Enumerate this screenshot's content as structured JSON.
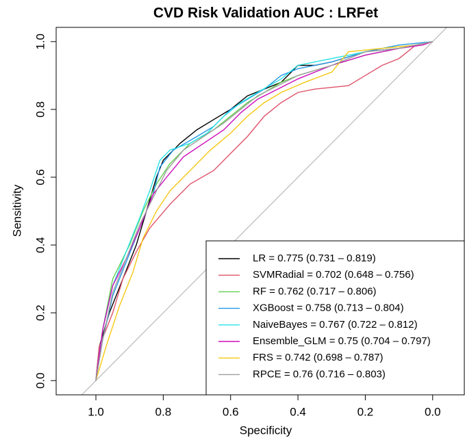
{
  "chart_data": {
    "type": "line",
    "title": "CVD Risk Validation AUC : LRFet",
    "x_label": "Specificity",
    "y_label": "Sensitivity",
    "xlim": [
      1.118,
      -0.094
    ],
    "ylim": [
      -0.042,
      1.042
    ],
    "xticks": [
      {
        "value": 1,
        "label": "1.0"
      },
      {
        "value": 0.8,
        "label": "0.8"
      },
      {
        "value": 0.6,
        "label": "0.6"
      },
      {
        "value": 0.4,
        "label": "0.4"
      },
      {
        "value": 0.2,
        "label": "0.2"
      },
      {
        "value": 0,
        "label": "0.0"
      }
    ],
    "yticks": [
      {
        "value": 0,
        "label": "0.0"
      },
      {
        "value": 0.2,
        "label": "0.2"
      },
      {
        "value": 0.4,
        "label": "0.4"
      },
      {
        "value": 0.6,
        "label": "0.6"
      },
      {
        "value": 0.8,
        "label": "0.8"
      },
      {
        "value": 1,
        "label": "1.0"
      }
    ],
    "series": [
      {
        "name": "LR = 0.775 (0.731 – 0.819)",
        "color": "#000000",
        "x": [
          1,
          0.99,
          0.96,
          0.92,
          0.88,
          0.85,
          0.82,
          0.8,
          0.75,
          0.7,
          0.65,
          0.6,
          0.55,
          0.5,
          0.45,
          0.4,
          0.35,
          0.3,
          0.2,
          0.1,
          0.05,
          0
        ],
        "values": [
          0,
          0.1,
          0.2,
          0.3,
          0.4,
          0.5,
          0.6,
          0.65,
          0.7,
          0.74,
          0.77,
          0.8,
          0.84,
          0.86,
          0.88,
          0.93,
          0.93,
          0.94,
          0.97,
          0.98,
          0.99,
          1
        ]
      },
      {
        "name": "SVMRadial = 0.702 (0.648 – 0.756)",
        "color": "#DF536B",
        "x": [
          1,
          0.99,
          0.95,
          0.92,
          0.88,
          0.84,
          0.78,
          0.72,
          0.65,
          0.6,
          0.55,
          0.5,
          0.45,
          0.4,
          0.35,
          0.25,
          0.2,
          0.15,
          0.1,
          0.05,
          0
        ],
        "values": [
          0,
          0.1,
          0.2,
          0.3,
          0.38,
          0.45,
          0.52,
          0.58,
          0.62,
          0.67,
          0.72,
          0.78,
          0.82,
          0.85,
          0.86,
          0.87,
          0.9,
          0.93,
          0.95,
          0.99,
          1
        ]
      },
      {
        "name": "RF = 0.762 (0.717 – 0.806)",
        "color": "#61D04F",
        "x": [
          1,
          0.98,
          0.95,
          0.9,
          0.86,
          0.82,
          0.78,
          0.72,
          0.65,
          0.6,
          0.55,
          0.5,
          0.45,
          0.4,
          0.3,
          0.2,
          0.1,
          0
        ],
        "values": [
          0,
          0.15,
          0.3,
          0.4,
          0.5,
          0.58,
          0.64,
          0.7,
          0.74,
          0.78,
          0.82,
          0.85,
          0.88,
          0.9,
          0.93,
          0.96,
          0.98,
          1
        ]
      },
      {
        "name": "XGBoost = 0.758 (0.713 – 0.804)",
        "color": "#2297E6",
        "x": [
          1,
          0.98,
          0.95,
          0.91,
          0.87,
          0.83,
          0.81,
          0.77,
          0.7,
          0.65,
          0.6,
          0.55,
          0.5,
          0.45,
          0.4,
          0.3,
          0.2,
          0.1,
          0
        ],
        "values": [
          0,
          0.12,
          0.25,
          0.35,
          0.45,
          0.55,
          0.63,
          0.68,
          0.72,
          0.75,
          0.8,
          0.83,
          0.86,
          0.9,
          0.92,
          0.94,
          0.97,
          0.99,
          1
        ]
      },
      {
        "name": "NaiveBayes = 0.767 (0.722 – 0.812)",
        "color": "#28E2E5",
        "x": [
          1,
          0.98,
          0.95,
          0.91,
          0.87,
          0.84,
          0.81,
          0.78,
          0.72,
          0.67,
          0.62,
          0.57,
          0.52,
          0.45,
          0.4,
          0.3,
          0.2,
          0.1,
          0
        ],
        "values": [
          0,
          0.15,
          0.28,
          0.38,
          0.48,
          0.56,
          0.65,
          0.68,
          0.7,
          0.73,
          0.78,
          0.82,
          0.85,
          0.89,
          0.93,
          0.95,
          0.97,
          0.98,
          1
        ]
      },
      {
        "name": "Ensemble_GLM = 0.75 (0.704 – 0.797)",
        "color": "#CD0BBC",
        "x": [
          1,
          0.98,
          0.95,
          0.91,
          0.87,
          0.83,
          0.79,
          0.74,
          0.68,
          0.62,
          0.57,
          0.52,
          0.46,
          0.4,
          0.3,
          0.2,
          0.1,
          0.03,
          0
        ],
        "values": [
          0,
          0.15,
          0.28,
          0.36,
          0.45,
          0.55,
          0.6,
          0.66,
          0.7,
          0.74,
          0.79,
          0.83,
          0.86,
          0.89,
          0.93,
          0.96,
          0.98,
          0.99,
          1
        ]
      },
      {
        "name": "FRS = 0.742 (0.698 – 0.787)",
        "color": "#F5C710",
        "x": [
          1,
          0.97,
          0.93,
          0.89,
          0.86,
          0.82,
          0.78,
          0.72,
          0.66,
          0.6,
          0.55,
          0.5,
          0.45,
          0.38,
          0.3,
          0.25,
          0.15,
          0.05,
          0
        ],
        "values": [
          0,
          0.1,
          0.22,
          0.32,
          0.42,
          0.5,
          0.56,
          0.62,
          0.68,
          0.73,
          0.78,
          0.82,
          0.85,
          0.88,
          0.91,
          0.97,
          0.98,
          0.99,
          1
        ]
      },
      {
        "name": "RPCE = 0.76 (0.716 – 0.803)",
        "color": "#9E9E9E",
        "x": [
          1,
          0.98,
          0.95,
          0.91,
          0.87,
          0.83,
          0.79,
          0.74,
          0.68,
          0.62,
          0.57,
          0.52,
          0.46,
          0.4,
          0.3,
          0.2,
          0.1,
          0
        ],
        "values": [
          0,
          0.12,
          0.26,
          0.36,
          0.46,
          0.54,
          0.62,
          0.68,
          0.72,
          0.76,
          0.8,
          0.84,
          0.87,
          0.9,
          0.93,
          0.97,
          0.98,
          1
        ]
      }
    ]
  }
}
